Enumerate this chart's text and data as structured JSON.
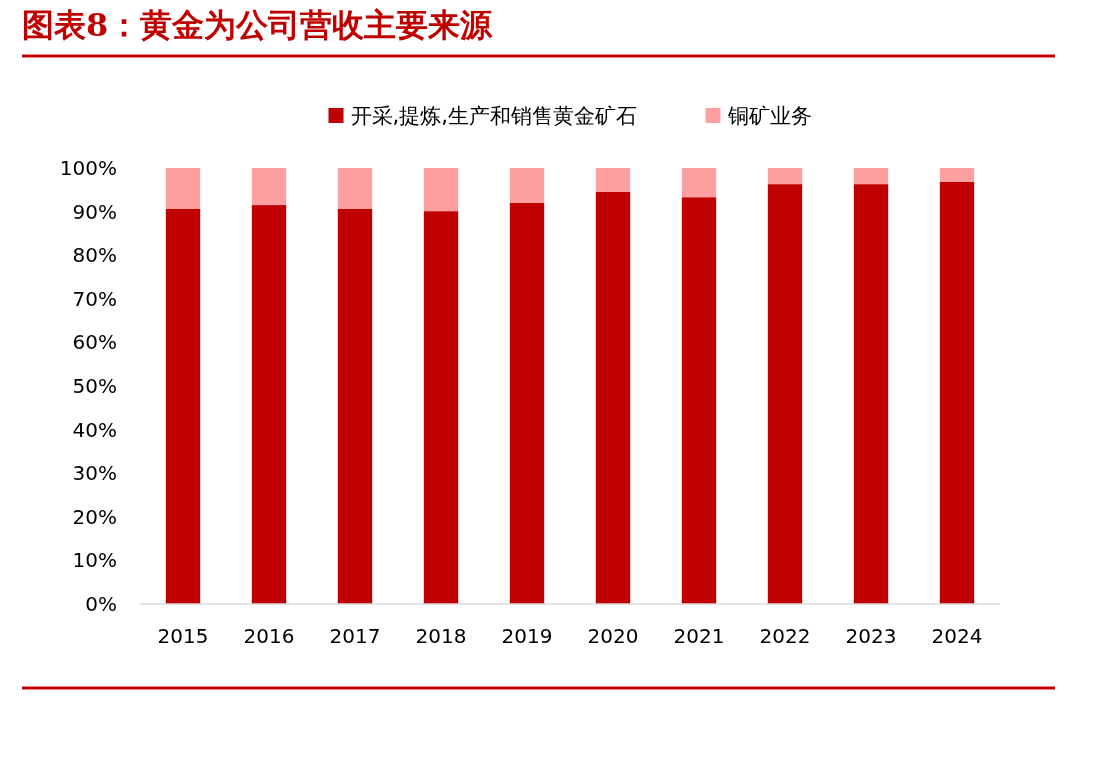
{
  "chart_data": {
    "type": "bar",
    "title": "图表8：黄金为公司营收主要来源",
    "stacked": true,
    "legend": "top",
    "categories": [
      "2015",
      "2016",
      "2017",
      "2018",
      "2019",
      "2020",
      "2021",
      "2022",
      "2023",
      "2024"
    ],
    "series": [
      {
        "name": "开采,提炼,生产和销售黄金矿石",
        "color": "#c00000",
        "values": [
          90.6,
          91.5,
          90.6,
          90.1,
          92.0,
          94.5,
          93.3,
          96.3,
          96.3,
          96.8
        ]
      },
      {
        "name": "铜矿业务",
        "color": "#ff9f9f",
        "values": [
          9.4,
          8.5,
          9.4,
          9.9,
          8.0,
          5.5,
          6.7,
          3.7,
          3.7,
          3.2
        ]
      }
    ],
    "ylim": [
      0,
      100
    ],
    "yticks": [
      {
        "value": 0,
        "label": "0%"
      },
      {
        "value": 10,
        "label": "10%"
      },
      {
        "value": 20,
        "label": "20%"
      },
      {
        "value": 30,
        "label": "30%"
      },
      {
        "value": 40,
        "label": "40%"
      },
      {
        "value": 50,
        "label": "50%"
      },
      {
        "value": 60,
        "label": "60%"
      },
      {
        "value": 70,
        "label": "70%"
      },
      {
        "value": 80,
        "label": "80%"
      },
      {
        "value": 90,
        "label": "90%"
      },
      {
        "value": 100,
        "label": "100%"
      }
    ],
    "grid": false
  }
}
